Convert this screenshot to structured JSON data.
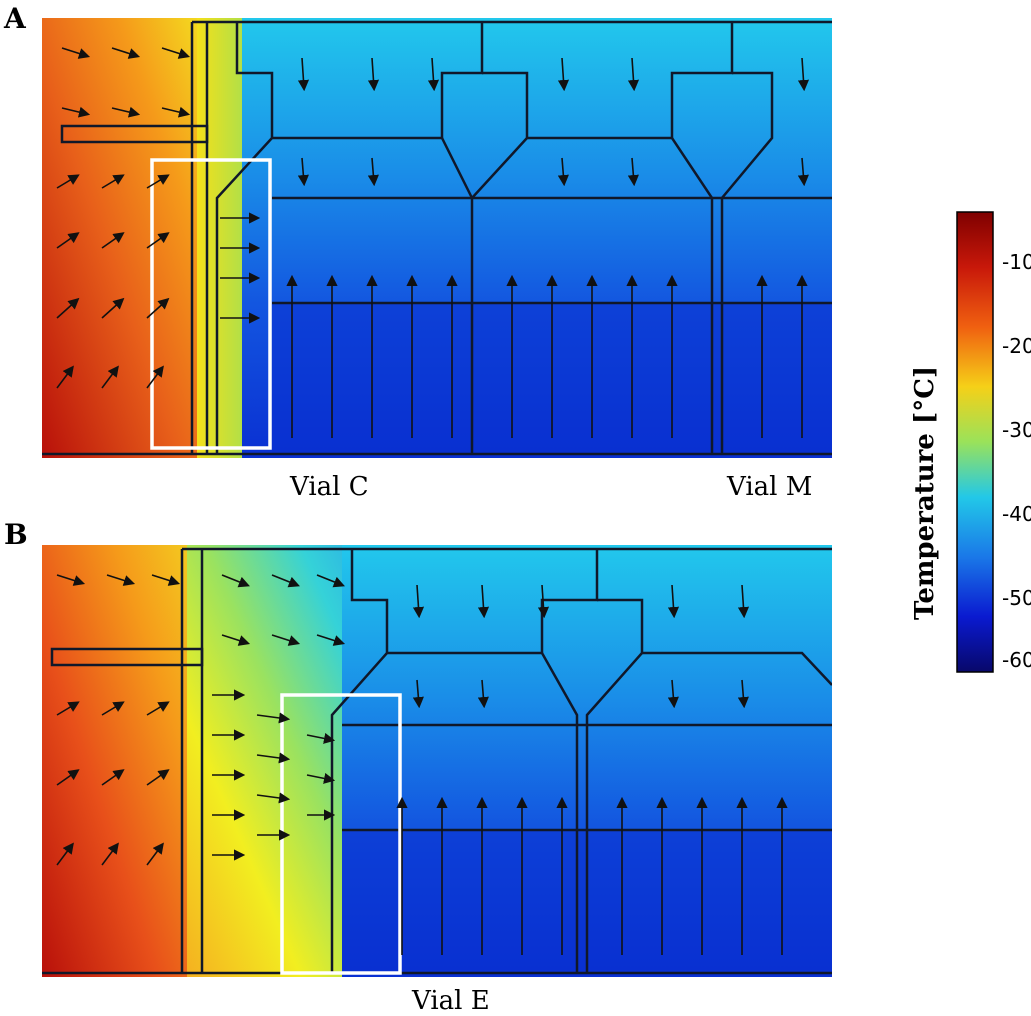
{
  "panels": [
    {
      "letter": "A",
      "vial_labels": [
        "Vial C",
        "Vial M"
      ],
      "highlight": "Vial C"
    },
    {
      "letter": "B",
      "vial_labels": [
        "Vial E"
      ],
      "highlight": "Vial E"
    }
  ],
  "colorbar": {
    "title": "Temperature [°C]",
    "ticks": [
      "-10",
      "-20",
      "-30",
      "-40",
      "-50",
      "-60"
    ],
    "range": [
      -5,
      -60
    ],
    "colors": [
      "#7f0000",
      "#e0200d",
      "#ff8c00",
      "#f2ee10",
      "#19d8e8",
      "#1a6ee8",
      "#0a10b0",
      "#08085a"
    ]
  },
  "field": {
    "warm_color": "#c42a08",
    "mid_color": "#f5e21a",
    "cold_color": "#1570e0",
    "deep_color": "#0a36d8",
    "highlight_color": "#ffffff"
  }
}
